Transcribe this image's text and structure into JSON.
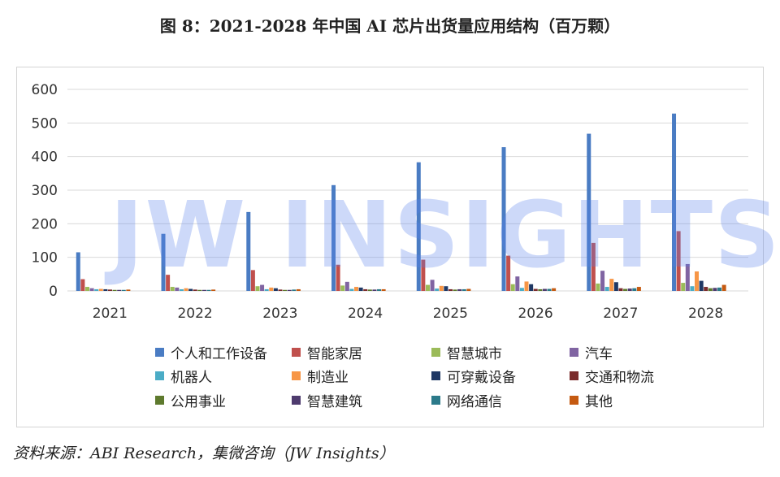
{
  "title": "图 8：2021-2028 年中国 AI 芯片出货量应用结构（百万颗）",
  "source": "资料来源：ABI Research，集微咨询（JW Insights）",
  "watermark": "JW INSIGHTS",
  "chart_data": {
    "type": "bar",
    "categories": [
      "2021",
      "2022",
      "2023",
      "2024",
      "2025",
      "2026",
      "2027",
      "2028"
    ],
    "ylim": [
      0,
      600
    ],
    "yticks": [
      0,
      100,
      200,
      300,
      400,
      500,
      600
    ],
    "grid": true,
    "legend_position": "bottom",
    "series": [
      {
        "name": "个人和工作设备",
        "color": "#4a7cc3",
        "values": [
          115,
          170,
          235,
          315,
          383,
          428,
          468,
          528
        ]
      },
      {
        "name": "智能家居",
        "color": "#c0504d",
        "values": [
          35,
          48,
          62,
          78,
          93,
          105,
          143,
          178
        ]
      },
      {
        "name": "智慧城市",
        "color": "#9bbb59",
        "values": [
          12,
          12,
          14,
          16,
          18,
          20,
          22,
          24
        ]
      },
      {
        "name": "汽车",
        "color": "#8064a2",
        "values": [
          8,
          10,
          18,
          27,
          33,
          43,
          60,
          80
        ]
      },
      {
        "name": "机器人",
        "color": "#4bacc6",
        "values": [
          5,
          5,
          5,
          6,
          7,
          9,
          12,
          14
        ]
      },
      {
        "name": "制造业",
        "color": "#f79646",
        "values": [
          6,
          8,
          10,
          12,
          15,
          28,
          36,
          58
        ]
      },
      {
        "name": "可穿戴设备",
        "color": "#1f3864",
        "values": [
          5,
          6,
          8,
          10,
          14,
          20,
          26,
          30
        ]
      },
      {
        "name": "交通和物流",
        "color": "#7b2c2c",
        "values": [
          4,
          4,
          4,
          5,
          5,
          6,
          8,
          12
        ]
      },
      {
        "name": "公用事业",
        "color": "#5e7a2e",
        "values": [
          3,
          3,
          3,
          4,
          4,
          5,
          6,
          8
        ]
      },
      {
        "name": "智慧建筑",
        "color": "#4e3b6e",
        "values": [
          3,
          3,
          3,
          4,
          5,
          6,
          7,
          9
        ]
      },
      {
        "name": "网络通信",
        "color": "#2c7a8a",
        "values": [
          3,
          3,
          4,
          5,
          5,
          6,
          8,
          10
        ]
      },
      {
        "name": "其他",
        "color": "#c55a11",
        "values": [
          4,
          4,
          5,
          5,
          6,
          8,
          12,
          18
        ]
      }
    ]
  }
}
